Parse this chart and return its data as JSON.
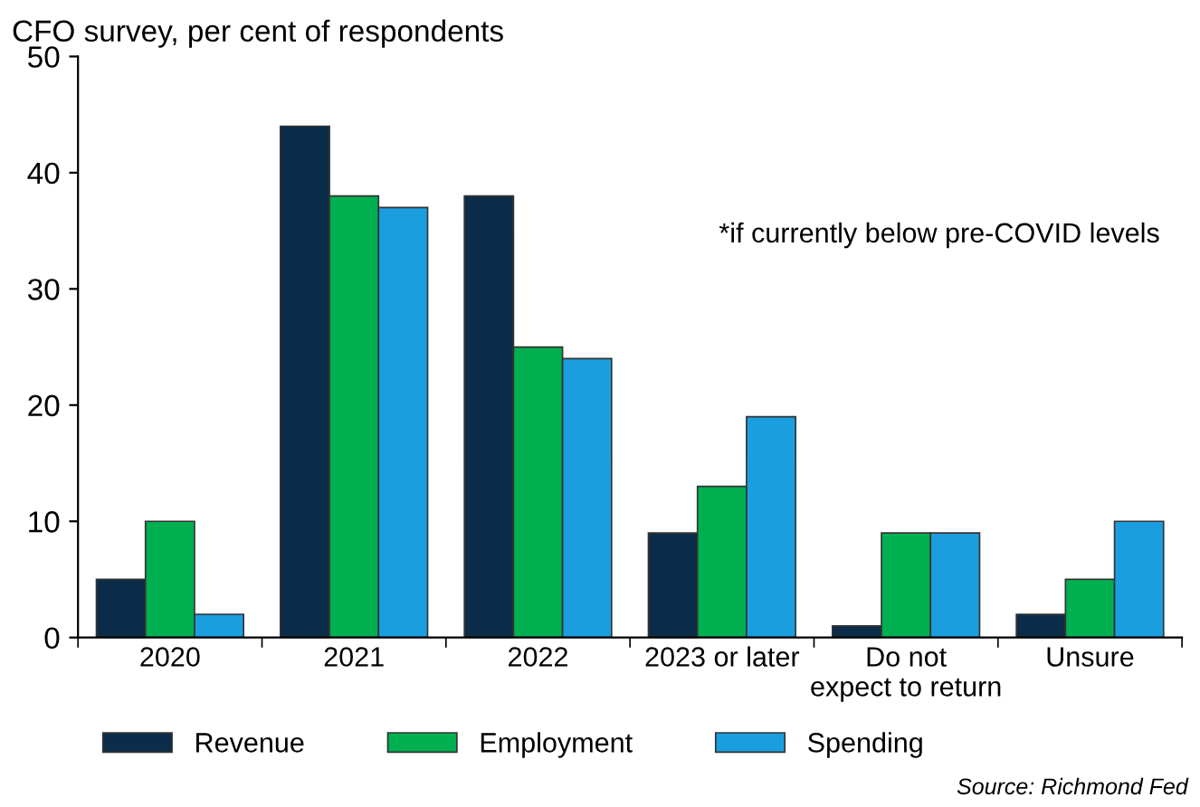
{
  "chart_data": {
    "type": "bar",
    "title": "CFO survey, per cent of respondents",
    "categories": [
      "2020",
      "2021",
      "2022",
      "2023 or later",
      "Do not\nexpect to return",
      "Unsure"
    ],
    "series": [
      {
        "name": "Revenue",
        "color": "#0b2d4a",
        "values": [
          5,
          44,
          38,
          9,
          1,
          2
        ]
      },
      {
        "name": "Employment",
        "color": "#00b050",
        "values": [
          10,
          38,
          25,
          13,
          9,
          5
        ]
      },
      {
        "name": "Spending",
        "color": "#1b9ee0",
        "values": [
          2,
          37,
          24,
          19,
          9,
          10
        ]
      }
    ],
    "ylim": [
      0,
      50
    ],
    "yticks": [
      0,
      10,
      20,
      30,
      40,
      50
    ],
    "grid": false,
    "legend": "bottom",
    "annotations": [
      {
        "text": "*if currently below pre-COVID levels"
      },
      {
        "text": "Source: Richmond Fed"
      }
    ]
  }
}
